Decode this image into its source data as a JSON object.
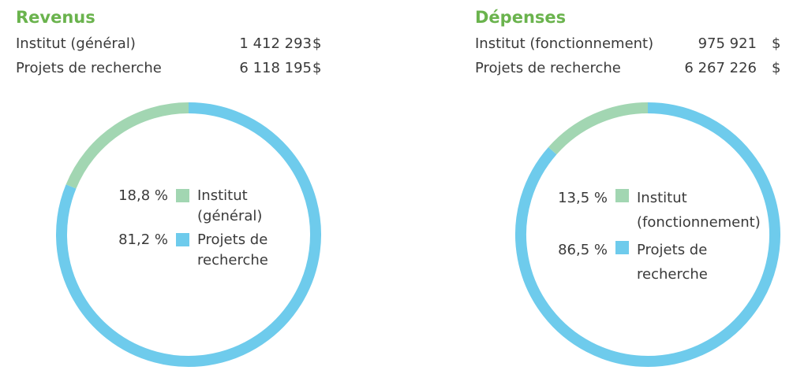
{
  "chart_data": [
    {
      "type": "donut",
      "title": "Revenus",
      "categories": [
        "Institut (général)",
        "Projets de recherche"
      ],
      "amounts": [
        1412293,
        6118195
      ],
      "amount_labels": [
        "1 412 293",
        "6 118 195"
      ],
      "currency": "$",
      "values": [
        18.8,
        81.2
      ],
      "value_labels": [
        "18,8 %",
        "81,2 %"
      ],
      "colors": [
        "#a2d6b2",
        "#6ecbec"
      ]
    },
    {
      "type": "donut",
      "title": "Dépenses",
      "categories": [
        "Institut (fonctionnement)",
        "Projets de recherche"
      ],
      "amounts": [
        975921,
        6267226
      ],
      "amount_labels": [
        "975 921",
        "6 267 226"
      ],
      "currency": "$",
      "values": [
        13.5,
        86.5
      ],
      "value_labels": [
        "13,5 %",
        "86,5 %"
      ],
      "colors": [
        "#a2d6b2",
        "#6ecbec"
      ]
    }
  ]
}
